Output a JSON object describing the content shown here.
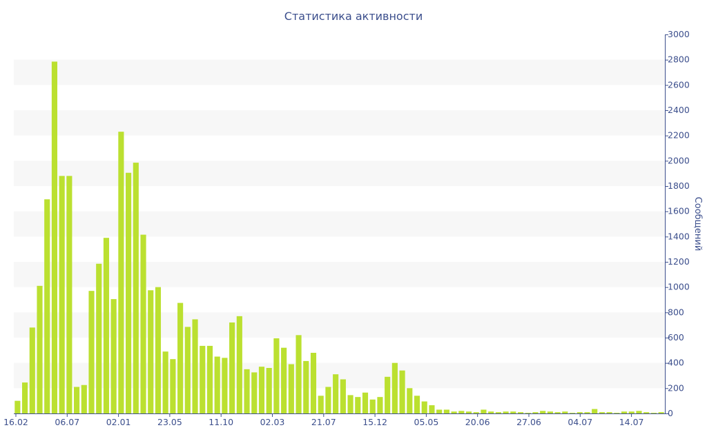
{
  "chart_data": {
    "type": "bar",
    "title": "Статистика активности",
    "ylabel": "Сообщений",
    "ylim": [
      0,
      3000
    ],
    "y_ticks": [
      0,
      200,
      400,
      600,
      800,
      1000,
      1200,
      1400,
      1600,
      1800,
      2000,
      2200,
      2400,
      2600,
      2800,
      3000
    ],
    "y_axis_side": "right",
    "grid": "alternating horizontal bands",
    "bar_color": "#bbe030",
    "x_tick_labels": [
      "16.02",
      "06.07",
      "02.01",
      "23.05",
      "11.10",
      "02.03",
      "21.07",
      "15.12",
      "05.05",
      "20.06",
      "27.06",
      "04.07",
      "14.07"
    ],
    "values": [
      100,
      245,
      680,
      1010,
      1695,
      2785,
      1880,
      1880,
      210,
      225,
      970,
      1185,
      1390,
      905,
      2230,
      1905,
      1985,
      1415,
      975,
      1000,
      490,
      430,
      875,
      685,
      745,
      535,
      535,
      450,
      440,
      720,
      770,
      350,
      325,
      370,
      360,
      595,
      520,
      390,
      620,
      415,
      480,
      140,
      210,
      310,
      270,
      145,
      130,
      165,
      110,
      130,
      290,
      400,
      340,
      200,
      140,
      95,
      65,
      30,
      30,
      15,
      20,
      15,
      10,
      30,
      15,
      10,
      15,
      15,
      10,
      5,
      10,
      20,
      15,
      10,
      15,
      5,
      10,
      10,
      35,
      10,
      10,
      5,
      15,
      15,
      20,
      10,
      5,
      10
    ]
  }
}
